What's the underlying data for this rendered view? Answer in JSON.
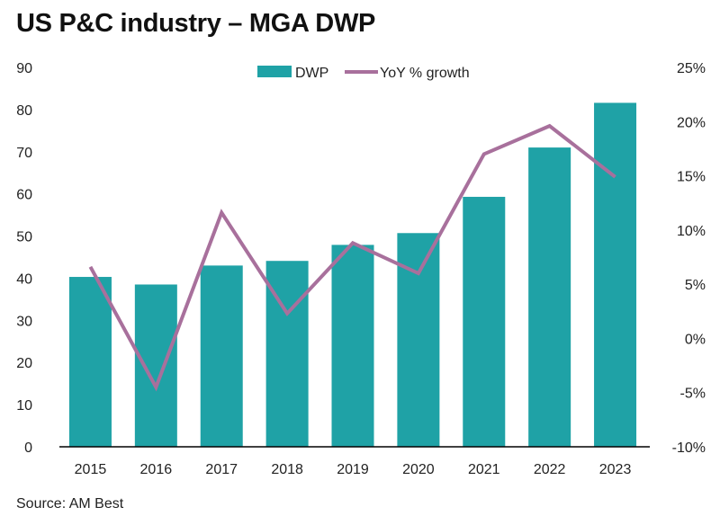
{
  "title": "US P&C industry – MGA DWP",
  "source": "Source: AM Best",
  "colors": {
    "bar": "#1fa2a6",
    "line": "#a8709c",
    "axis": "#000000"
  },
  "chart_data": {
    "type": "bar+line",
    "title": "US P&C industry – MGA DWP",
    "categories": [
      "2015",
      "2016",
      "2017",
      "2018",
      "2019",
      "2020",
      "2021",
      "2022",
      "2023"
    ],
    "series": [
      {
        "name": "DWP",
        "type": "bar",
        "axis": "left",
        "values": [
          40.3,
          38.5,
          43.0,
          44.1,
          47.9,
          50.7,
          59.3,
          71.0,
          81.6
        ]
      },
      {
        "name": "YoY % growth",
        "type": "line",
        "axis": "right",
        "values": [
          6.6,
          -4.5,
          11.6,
          2.3,
          8.8,
          6.0,
          17.0,
          19.6,
          14.9
        ]
      }
    ],
    "y_left": {
      "lim": [
        0,
        90
      ],
      "ticks": [
        "0",
        "10",
        "20",
        "30",
        "40",
        "50",
        "60",
        "70",
        "80",
        "90"
      ]
    },
    "y_right": {
      "lim": [
        -10,
        25
      ],
      "ticks": [
        "-10%",
        "-5%",
        "0%",
        "5%",
        "10%",
        "15%",
        "20%",
        "25%"
      ]
    },
    "grid": false,
    "legend": "top-center"
  }
}
